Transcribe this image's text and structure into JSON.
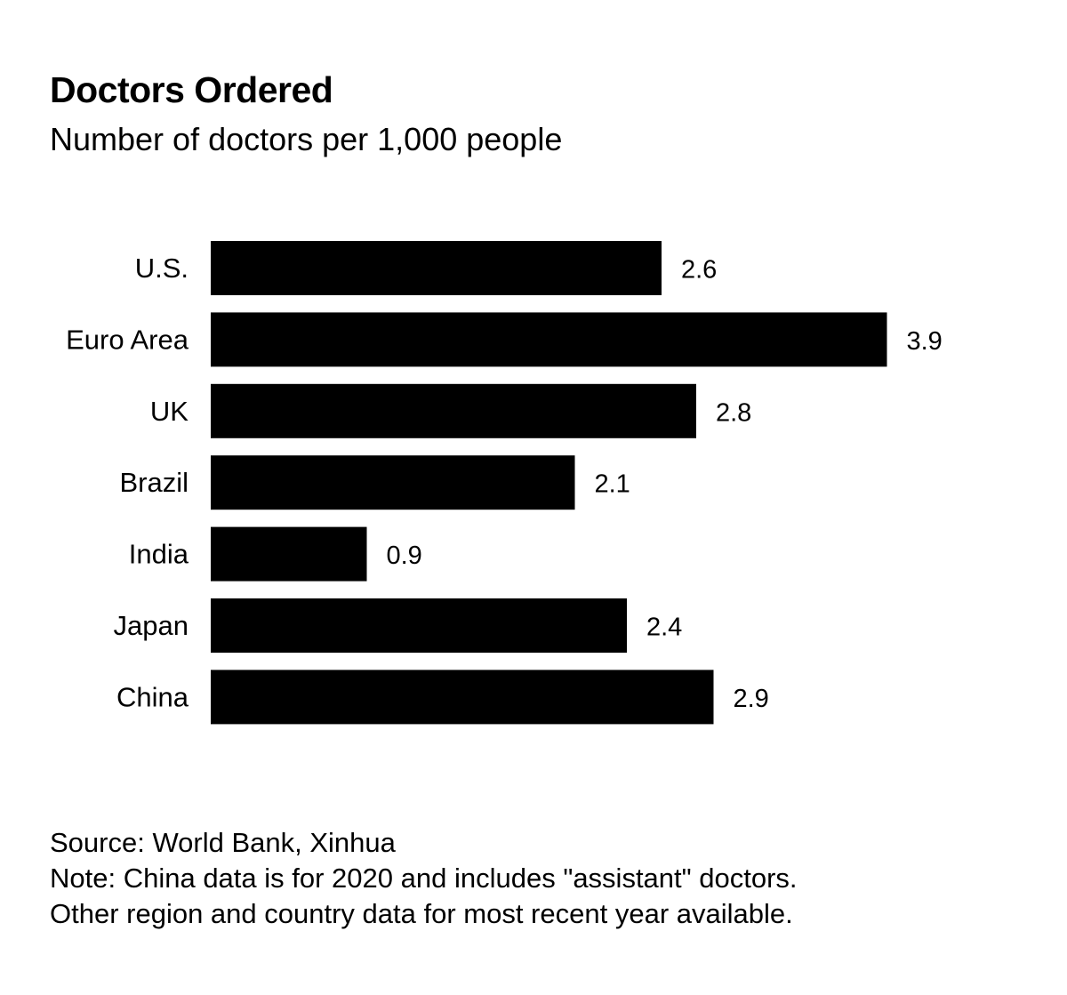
{
  "chart_data": {
    "type": "bar",
    "orientation": "horizontal",
    "title": "Doctors Ordered",
    "subtitle": "Number of doctors per 1,000 people",
    "categories": [
      "U.S.",
      "Euro Area",
      "UK",
      "Brazil",
      "India",
      "Japan",
      "China"
    ],
    "values": [
      2.6,
      3.9,
      2.8,
      2.1,
      0.9,
      2.4,
      2.9
    ],
    "value_labels": [
      "2.6",
      "3.9",
      "2.8",
      "2.1",
      "0.9",
      "2.4",
      "2.9"
    ],
    "xlabel": "",
    "ylabel": "",
    "xlim": [
      0,
      3.9
    ],
    "bar_color": "#000000",
    "grid": false,
    "legend": "none"
  },
  "footer": {
    "source": "Source: World Bank, Xinhua",
    "note_line1": "Note: China data is for 2020 and includes \"assistant\" doctors.",
    "note_line2": "Other region and country data for most recent year available."
  }
}
